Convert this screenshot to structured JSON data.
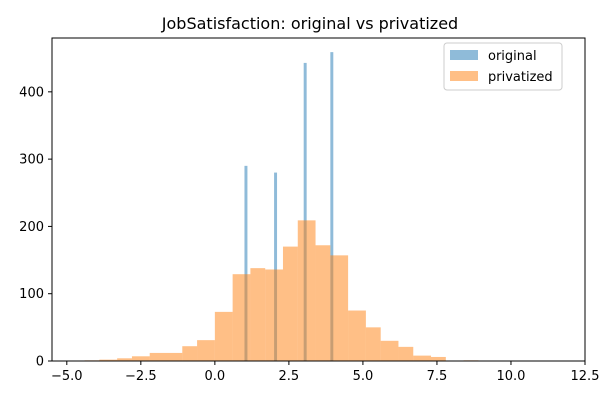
{
  "chart_data": {
    "type": "histogram",
    "title": "JobSatisfaction: original vs privatized",
    "xlabel": "",
    "ylabel": "",
    "xlim": [
      -5.5,
      12.5
    ],
    "ylim": [
      0,
      480
    ],
    "xticks": [
      -5.0,
      -2.5,
      0.0,
      2.5,
      5.0,
      7.5,
      10.0,
      12.5
    ],
    "xtick_labels": [
      "−5.0",
      "−2.5",
      "0.0",
      "2.5",
      "5.0",
      "7.5",
      "10.0",
      "12.5"
    ],
    "yticks": [
      0,
      100,
      200,
      300,
      400
    ],
    "ytick_labels": [
      "0",
      "100",
      "200",
      "300",
      "400"
    ],
    "grid": false,
    "legend": {
      "placement": "top-right",
      "entries": [
        "original",
        "privatized"
      ]
    },
    "series": [
      {
        "name": "original",
        "color": "#1f77b4",
        "alpha": 0.5,
        "bins": [
          {
            "x0": 1.0,
            "x1": 1.1,
            "count": 290
          },
          {
            "x0": 2.0,
            "x1": 2.1,
            "count": 280
          },
          {
            "x0": 3.0,
            "x1": 3.1,
            "count": 443
          },
          {
            "x0": 3.9,
            "x1": 4.0,
            "count": 459
          }
        ]
      },
      {
        "name": "privatized",
        "color": "#ff7f0e",
        "alpha": 0.5,
        "bins": [
          {
            "x0": -4.4,
            "x1": -3.9,
            "count": 1
          },
          {
            "x0": -3.9,
            "x1": -3.3,
            "count": 2
          },
          {
            "x0": -3.3,
            "x1": -2.8,
            "count": 4
          },
          {
            "x0": -2.8,
            "x1": -2.2,
            "count": 7
          },
          {
            "x0": -2.2,
            "x1": -1.7,
            "count": 12
          },
          {
            "x0": -1.7,
            "x1": -1.1,
            "count": 12
          },
          {
            "x0": -1.1,
            "x1": -0.6,
            "count": 22
          },
          {
            "x0": -0.6,
            "x1": 0.0,
            "count": 31
          },
          {
            "x0": 0.0,
            "x1": 0.6,
            "count": 73
          },
          {
            "x0": 0.6,
            "x1": 1.2,
            "count": 129
          },
          {
            "x0": 1.2,
            "x1": 1.7,
            "count": 138
          },
          {
            "x0": 1.7,
            "x1": 2.3,
            "count": 136
          },
          {
            "x0": 2.3,
            "x1": 2.8,
            "count": 170
          },
          {
            "x0": 2.8,
            "x1": 3.4,
            "count": 209
          },
          {
            "x0": 3.4,
            "x1": 3.9,
            "count": 172
          },
          {
            "x0": 3.9,
            "x1": 4.5,
            "count": 157
          },
          {
            "x0": 4.5,
            "x1": 5.1,
            "count": 75
          },
          {
            "x0": 5.1,
            "x1": 5.6,
            "count": 50
          },
          {
            "x0": 5.6,
            "x1": 6.2,
            "count": 30
          },
          {
            "x0": 6.2,
            "x1": 6.7,
            "count": 21
          },
          {
            "x0": 6.7,
            "x1": 7.3,
            "count": 8
          },
          {
            "x0": 7.3,
            "x1": 7.8,
            "count": 6
          },
          {
            "x0": 8.4,
            "x1": 8.9,
            "count": 1
          }
        ]
      }
    ]
  }
}
